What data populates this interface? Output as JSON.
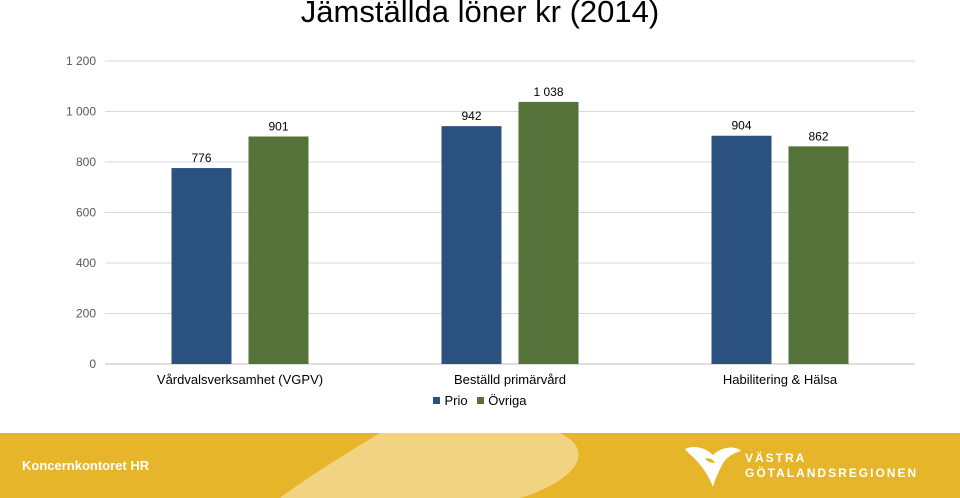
{
  "header": {
    "title": "Jämställda löner kr (2014)"
  },
  "colors": {
    "prio": "#2a5180",
    "ovriga": "#56723b",
    "footer_yellow": "#e6b529",
    "footer_light": "#f0d481",
    "grid": "#d9d9d9"
  },
  "chart_data": {
    "type": "bar",
    "title": "Jämställda löner kr (2014)",
    "categories": [
      "Vårdvalsverksamhet (VGPV)",
      "Beställd primärvård",
      "Habilitering & Hälsa"
    ],
    "series": [
      {
        "name": "Prio",
        "values": [
          776,
          942,
          904
        ],
        "labels": [
          "776",
          "942",
          "904"
        ],
        "color": "#2a5180"
      },
      {
        "name": "Övriga",
        "values": [
          901,
          1038,
          862
        ],
        "labels": [
          "901",
          "1 038",
          "862"
        ],
        "color": "#56723b"
      }
    ],
    "yticks": [
      "0",
      "200",
      "400",
      "600",
      "800",
      "1 000",
      "1 200"
    ],
    "ylim": [
      0,
      1200
    ],
    "grid": true,
    "legend": "bottom"
  },
  "footer": {
    "text": "Koncernkontoret HR",
    "logo_line1": "VÄSTRA",
    "logo_line2": "GÖTALANDSREGIONEN",
    "logo_icon": "vgr-heart-logo-icon"
  }
}
